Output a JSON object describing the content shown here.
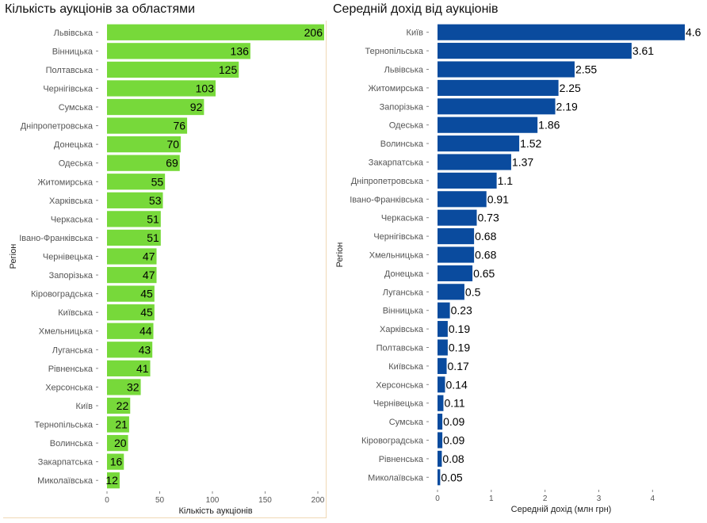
{
  "chart_data": [
    {
      "type": "bar",
      "orientation": "horizontal",
      "title": "Кількість аукціонів за областями",
      "xlabel": "Кількість аукціонів",
      "ylabel": "Регіон",
      "color": "#77d93a",
      "xlim": [
        0,
        206
      ],
      "xticks": [
        0,
        50,
        100,
        150,
        200
      ],
      "categories": [
        "Львівська",
        "Вінницька",
        "Полтавська",
        "Чернігівська",
        "Сумська",
        "Дніпропетровська",
        "Донецька",
        "Одеська",
        "Житомирська",
        "Харківська",
        "Черкаська",
        "Івано-Франківська",
        "Чернівецька",
        "Запорізька",
        "Кіровоградська",
        "Київська",
        "Хмельницька",
        "Луганська",
        "Рівненська",
        "Херсонська",
        "Київ",
        "Тернопільська",
        "Волинська",
        "Закарпатська",
        "Миколаївська"
      ],
      "values": [
        206,
        136,
        125,
        103,
        92,
        76,
        70,
        69,
        55,
        53,
        51,
        51,
        47,
        47,
        45,
        45,
        44,
        43,
        41,
        32,
        22,
        21,
        20,
        16,
        12
      ],
      "value_labels": [
        "206",
        "136",
        "125",
        "103",
        "92",
        "76",
        "70",
        "69",
        "55",
        "53",
        "51",
        "51",
        "47",
        "47",
        "45",
        "45",
        "44",
        "43",
        "41",
        "32",
        "22",
        "21",
        "20",
        "16",
        "12"
      ],
      "grid": false
    },
    {
      "type": "bar",
      "orientation": "horizontal",
      "title": "Середній дохід від аукціонів",
      "xlabel": "Середній дохід (млн грн)",
      "ylabel": "Регіон",
      "color": "#0a4b9e",
      "xlim": [
        0,
        4.6
      ],
      "xticks": [
        0,
        1,
        2,
        3,
        4
      ],
      "categories": [
        "Київ",
        "Тернопільська",
        "Львівська",
        "Житомирська",
        "Запорізька",
        "Одеська",
        "Волинська",
        "Закарпатська",
        "Дніпропетровська",
        "Івано-Франківська",
        "Черкаська",
        "Чернігівська",
        "Хмельницька",
        "Донецька",
        "Луганська",
        "Вінницька",
        "Харківська",
        "Полтавська",
        "Київська",
        "Херсонська",
        "Чернівецька",
        "Сумська",
        "Кіровоградська",
        "Рівненська",
        "Миколаївська"
      ],
      "values": [
        4.6,
        3.61,
        2.55,
        2.25,
        2.19,
        1.86,
        1.52,
        1.37,
        1.1,
        0.91,
        0.73,
        0.68,
        0.68,
        0.65,
        0.5,
        0.23,
        0.19,
        0.19,
        0.17,
        0.14,
        0.11,
        0.09,
        0.09,
        0.08,
        0.05
      ],
      "value_labels": [
        "4.6",
        "3.61",
        "2.55",
        "2.25",
        "2.19",
        "1.86",
        "1.52",
        "1.37",
        "1.1",
        "0.91",
        "0.73",
        "0.68",
        "0.68",
        "0.65",
        "0.5",
        "0.23",
        "0.19",
        "0.19",
        "0.17",
        "0.14",
        "0.11",
        "0.09",
        "0.09",
        "0.08",
        "0.05"
      ],
      "grid": false
    }
  ]
}
